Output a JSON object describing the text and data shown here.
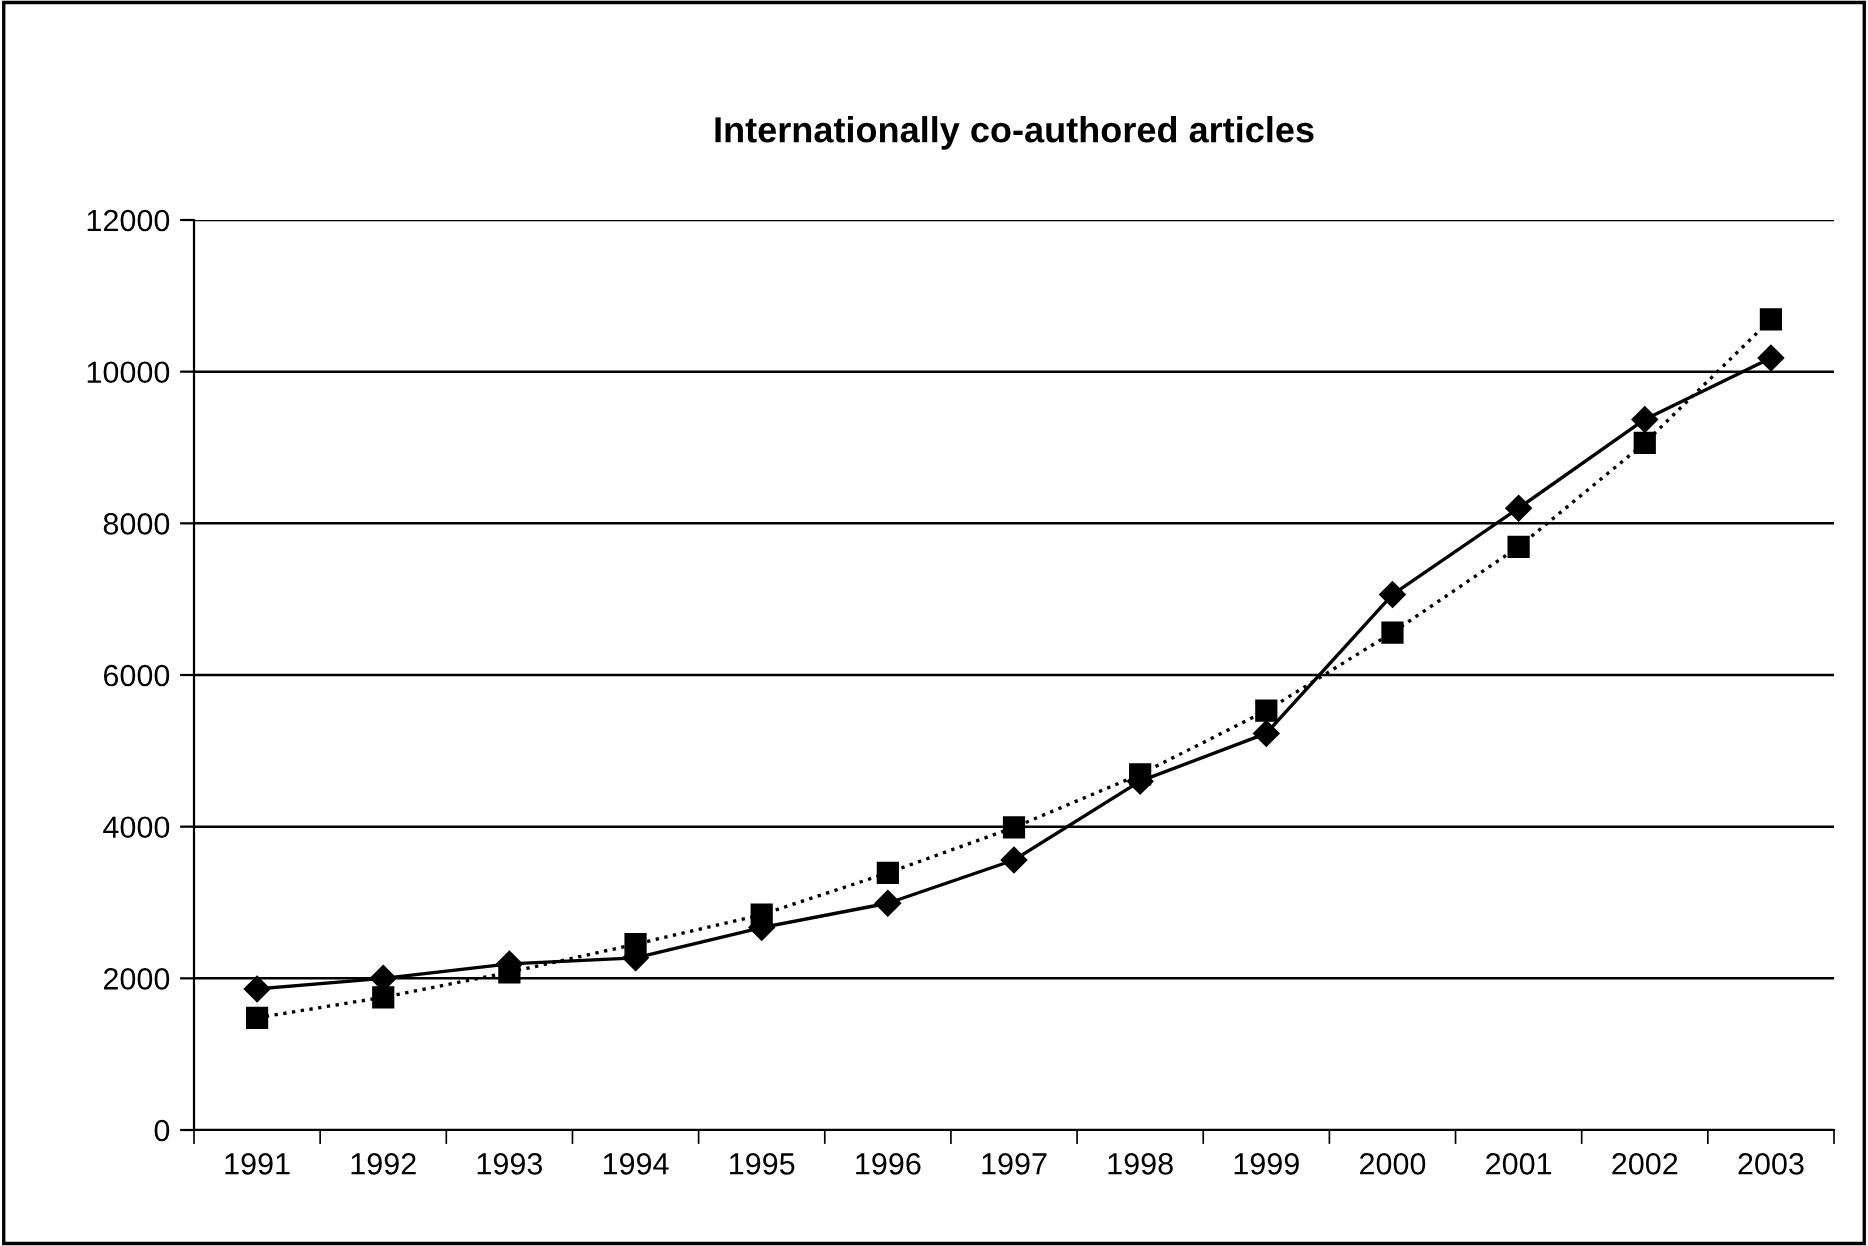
{
  "chart_data": {
    "type": "line",
    "title": "Internationally co-authored articles",
    "categories": [
      "1991",
      "1992",
      "1993",
      "1994",
      "1995",
      "1996",
      "1997",
      "1998",
      "1999",
      "2000",
      "2001",
      "2002",
      "2003"
    ],
    "series": [
      {
        "color": "#000000",
        "marker": "diamond",
        "line_style": "solid",
        "values": [
          1860,
          2000,
          2190,
          2270,
          2670,
          2990,
          3560,
          4600,
          5230,
          7060,
          8200,
          9370,
          10180
        ]
      },
      {
        "color": "#000000",
        "marker": "square",
        "line_style": "dotted",
        "values": [
          1480,
          1750,
          2080,
          2450,
          2840,
          3390,
          3990,
          4690,
          5530,
          6560,
          7690,
          9060,
          10690
        ]
      }
    ],
    "ylim": [
      0,
      12000
    ],
    "yticks": [
      0,
      2000,
      4000,
      6000,
      8000,
      10000,
      12000
    ],
    "grid": "y"
  }
}
